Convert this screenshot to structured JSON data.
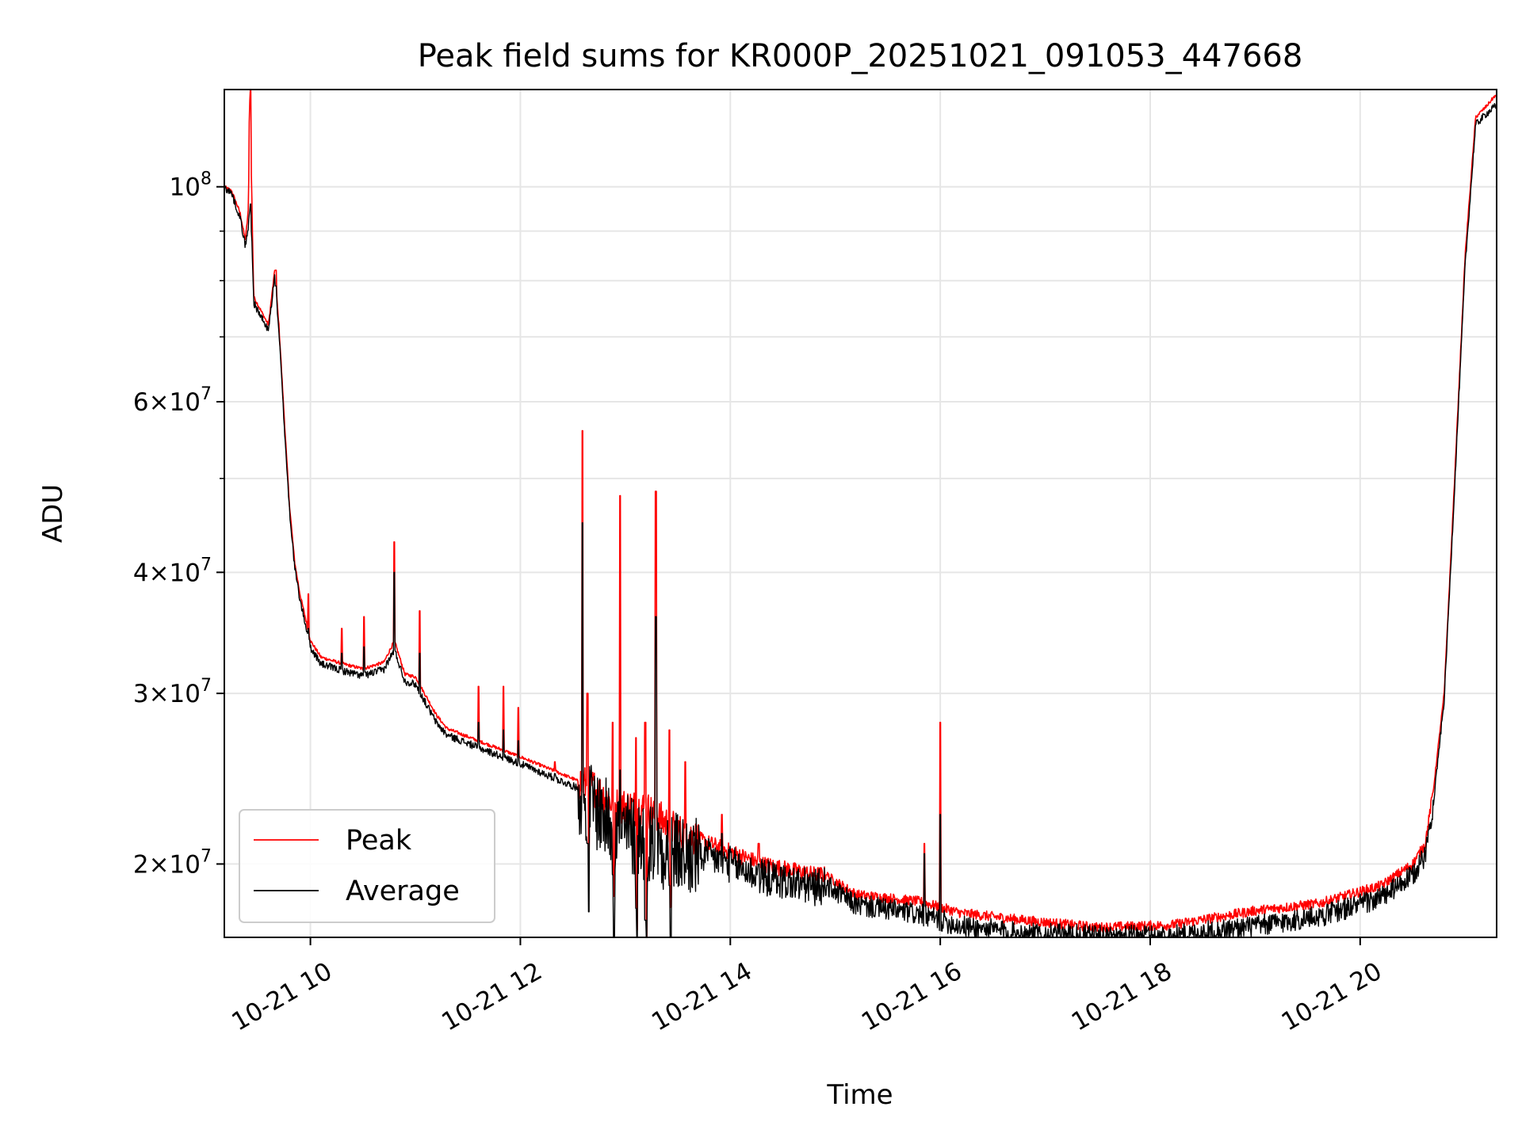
{
  "chart_data": {
    "type": "line",
    "title": "Peak field sums for KR000P_20251021_091053_447668",
    "xlabel": "Time",
    "ylabel": "ADU",
    "yscale": "log",
    "xlim": [
      9.18,
      21.3
    ],
    "ylim": [
      16800000,
      126000000
    ],
    "grid": true,
    "legend_position": "lower-left",
    "x_ticks": [
      {
        "value": 10,
        "label": "10-21 10"
      },
      {
        "value": 12,
        "label": "10-21 12"
      },
      {
        "value": 14,
        "label": "10-21 14"
      },
      {
        "value": 16,
        "label": "10-21 16"
      },
      {
        "value": 18,
        "label": "10-21 18"
      },
      {
        "value": 20,
        "label": "10-21 20"
      }
    ],
    "y_ticks": [
      {
        "value": 20000000,
        "mantissa": "2×10",
        "exp": "7"
      },
      {
        "value": 30000000,
        "mantissa": "3×10",
        "exp": "7"
      },
      {
        "value": 40000000,
        "mantissa": "4×10",
        "exp": "7"
      },
      {
        "value": 60000000,
        "mantissa": "6×10",
        "exp": "7"
      },
      {
        "value": 100000000,
        "mantissa": "10",
        "exp": "8"
      }
    ],
    "y_minor_ticks": [
      50000000,
      70000000,
      80000000,
      90000000
    ],
    "series": [
      {
        "name": "Peak",
        "color": "#ff0000",
        "x": [
          9.18,
          9.25,
          9.33,
          9.38,
          9.41,
          9.42,
          9.44,
          9.46,
          9.6,
          9.66,
          9.7,
          9.75,
          9.8,
          9.85,
          9.9,
          9.95,
          10.0,
          10.1,
          10.3,
          10.5,
          10.7,
          10.8,
          10.9,
          11.0,
          11.2,
          11.3,
          11.6,
          12.0,
          12.5,
          12.6,
          12.7,
          12.9,
          13.2,
          13.5,
          13.9,
          14.3,
          14.8,
          14.9,
          15.2,
          15.8,
          16.2,
          16.8,
          17.5,
          18.2,
          19.0,
          19.6,
          20.2,
          20.5,
          20.62,
          20.7,
          20.8,
          20.9,
          21.0,
          21.1,
          21.2,
          21.28
        ],
        "values": [
          100000000,
          99000000,
          94000000,
          88000000,
          95000000,
          126000000,
          100000000,
          77000000,
          72000000,
          82000000,
          72000000,
          58000000,
          47000000,
          41000000,
          38000000,
          36000000,
          34000000,
          32700000,
          32200000,
          31800000,
          32300000,
          34000000,
          31400000,
          31200000,
          28500000,
          27600000,
          26800000,
          25800000,
          24500000,
          24200000,
          24000000,
          23000000,
          22800000,
          21600000,
          20800000,
          20000000,
          19500000,
          19500000,
          18600000,
          18300000,
          17800000,
          17500000,
          17200000,
          17300000,
          17900000,
          18200000,
          19000000,
          20000000,
          21000000,
          24000000,
          30000000,
          50000000,
          85000000,
          118000000,
          121000000,
          124000000
        ]
      },
      {
        "name": "Average",
        "color": "#000000",
        "x": [
          9.18,
          9.25,
          9.33,
          9.38,
          9.41,
          9.42,
          9.44,
          9.46,
          9.6,
          9.66,
          9.7,
          9.75,
          9.8,
          9.85,
          9.9,
          9.95,
          10.0,
          10.1,
          10.3,
          10.5,
          10.7,
          10.8,
          10.9,
          11.0,
          11.2,
          11.3,
          11.6,
          12.0,
          12.5,
          12.6,
          12.7,
          12.9,
          13.2,
          13.5,
          13.9,
          14.3,
          14.8,
          14.9,
          15.2,
          15.8,
          16.2,
          16.8,
          17.5,
          18.2,
          19.0,
          19.6,
          20.2,
          20.5,
          20.62,
          20.7,
          20.8,
          20.9,
          21.0,
          21.1,
          21.2,
          21.28
        ],
        "values": [
          100000000,
          98500000,
          93000000,
          87000000,
          91000000,
          95000000,
          90000000,
          76000000,
          71000000,
          81000000,
          71000000,
          57000000,
          46500000,
          40500000,
          37500000,
          35500000,
          33500000,
          32200000,
          31700000,
          31300000,
          31800000,
          33300000,
          30900000,
          30700000,
          28000000,
          27200000,
          26400000,
          25400000,
          24100000,
          23800000,
          23300000,
          22000000,
          21500000,
          20800000,
          20300000,
          19500000,
          19000000,
          19100000,
          18200000,
          17800000,
          17300000,
          17000000,
          16900000,
          16900000,
          17300000,
          17700000,
          18500000,
          19500000,
          20500000,
          23300000,
          29500000,
          49000000,
          83000000,
          116000000,
          119000000,
          121000000
        ]
      }
    ],
    "spikes": [
      {
        "x": 9.43,
        "peak": 126000000,
        "avg": 96000000
      },
      {
        "x": 9.67,
        "peak": 82000000,
        "avg": 79000000
      },
      {
        "x": 9.98,
        "peak": 38000000,
        "avg": 35000000
      },
      {
        "x": 10.3,
        "peak": 35000000,
        "avg": 33000000
      },
      {
        "x": 10.51,
        "peak": 36000000,
        "avg": 33500000
      },
      {
        "x": 10.8,
        "peak": 43000000,
        "avg": 40000000
      },
      {
        "x": 11.04,
        "peak": 36500000,
        "avg": 33000000
      },
      {
        "x": 11.6,
        "peak": 30500000,
        "avg": 28000000
      },
      {
        "x": 11.84,
        "peak": 30500000,
        "avg": 27500000
      },
      {
        "x": 11.98,
        "peak": 29000000,
        "avg": 26800000
      },
      {
        "x": 12.33,
        "peak": 25500000,
        "avg": 24800000
      },
      {
        "x": 12.59,
        "peak": 56000000,
        "avg": 45000000
      },
      {
        "x": 12.64,
        "peak": 30000000,
        "avg": 21000000
      },
      {
        "x": 12.88,
        "peak": 28000000,
        "avg": 19500000
      },
      {
        "x": 12.95,
        "peak": 48000000,
        "avg": 25000000
      },
      {
        "x": 13.1,
        "peak": 27000000,
        "avg": 18000000
      },
      {
        "x": 13.19,
        "peak": 28000000,
        "avg": 17500000
      },
      {
        "x": 13.29,
        "peak": 48500000,
        "avg": 36000000
      },
      {
        "x": 13.42,
        "peak": 27500000,
        "avg": 19000000
      },
      {
        "x": 13.57,
        "peak": 25500000,
        "avg": 20000000
      },
      {
        "x": 13.92,
        "peak": 22500000,
        "avg": 21500000
      },
      {
        "x": 14.27,
        "peak": 21000000,
        "avg": 20000000
      },
      {
        "x": 14.92,
        "peak": 19500000,
        "avg": 19000000
      },
      {
        "x": 15.85,
        "peak": 21000000,
        "avg": 20500000
      },
      {
        "x": 16.0,
        "peak": 28000000,
        "avg": 22500000
      }
    ]
  }
}
